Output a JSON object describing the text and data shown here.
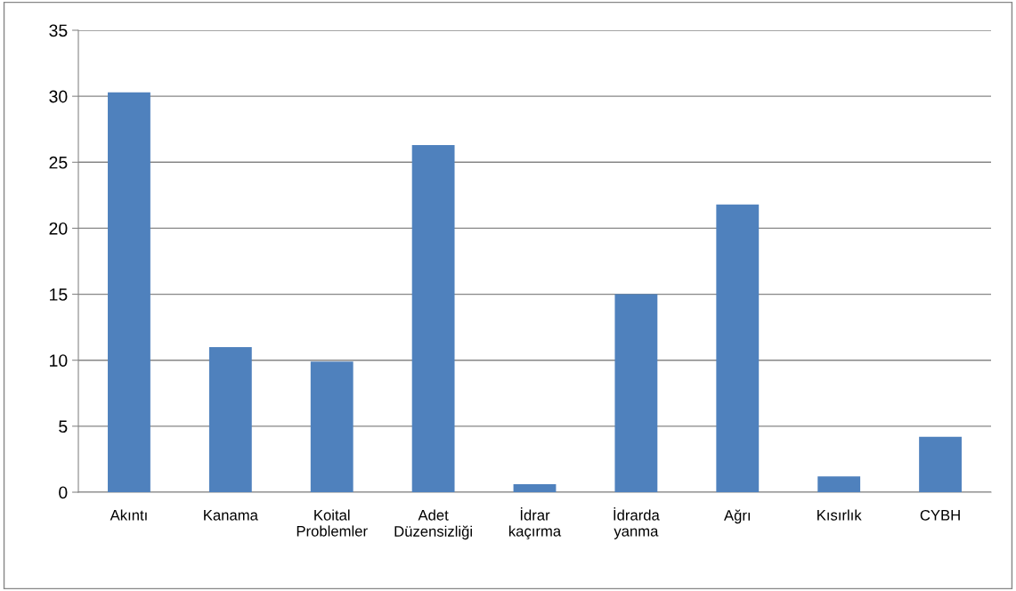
{
  "chart_data": {
    "type": "bar",
    "categories": [
      "Akıntı",
      "Kanama",
      "Koital\nProblemler",
      "Adet\nDüzensizliği",
      "İdrar\nkaçırma",
      "İdrarda\nyanma",
      "Ağrı",
      "Kısırlık",
      "CYBH"
    ],
    "values": [
      30.3,
      11.0,
      9.9,
      26.3,
      0.6,
      15.0,
      21.8,
      1.2,
      4.2
    ],
    "color": "#4f81bd",
    "ylim": [
      0,
      35
    ],
    "yticks": [
      0,
      5,
      10,
      15,
      20,
      25,
      30,
      35
    ],
    "grid": "y"
  }
}
